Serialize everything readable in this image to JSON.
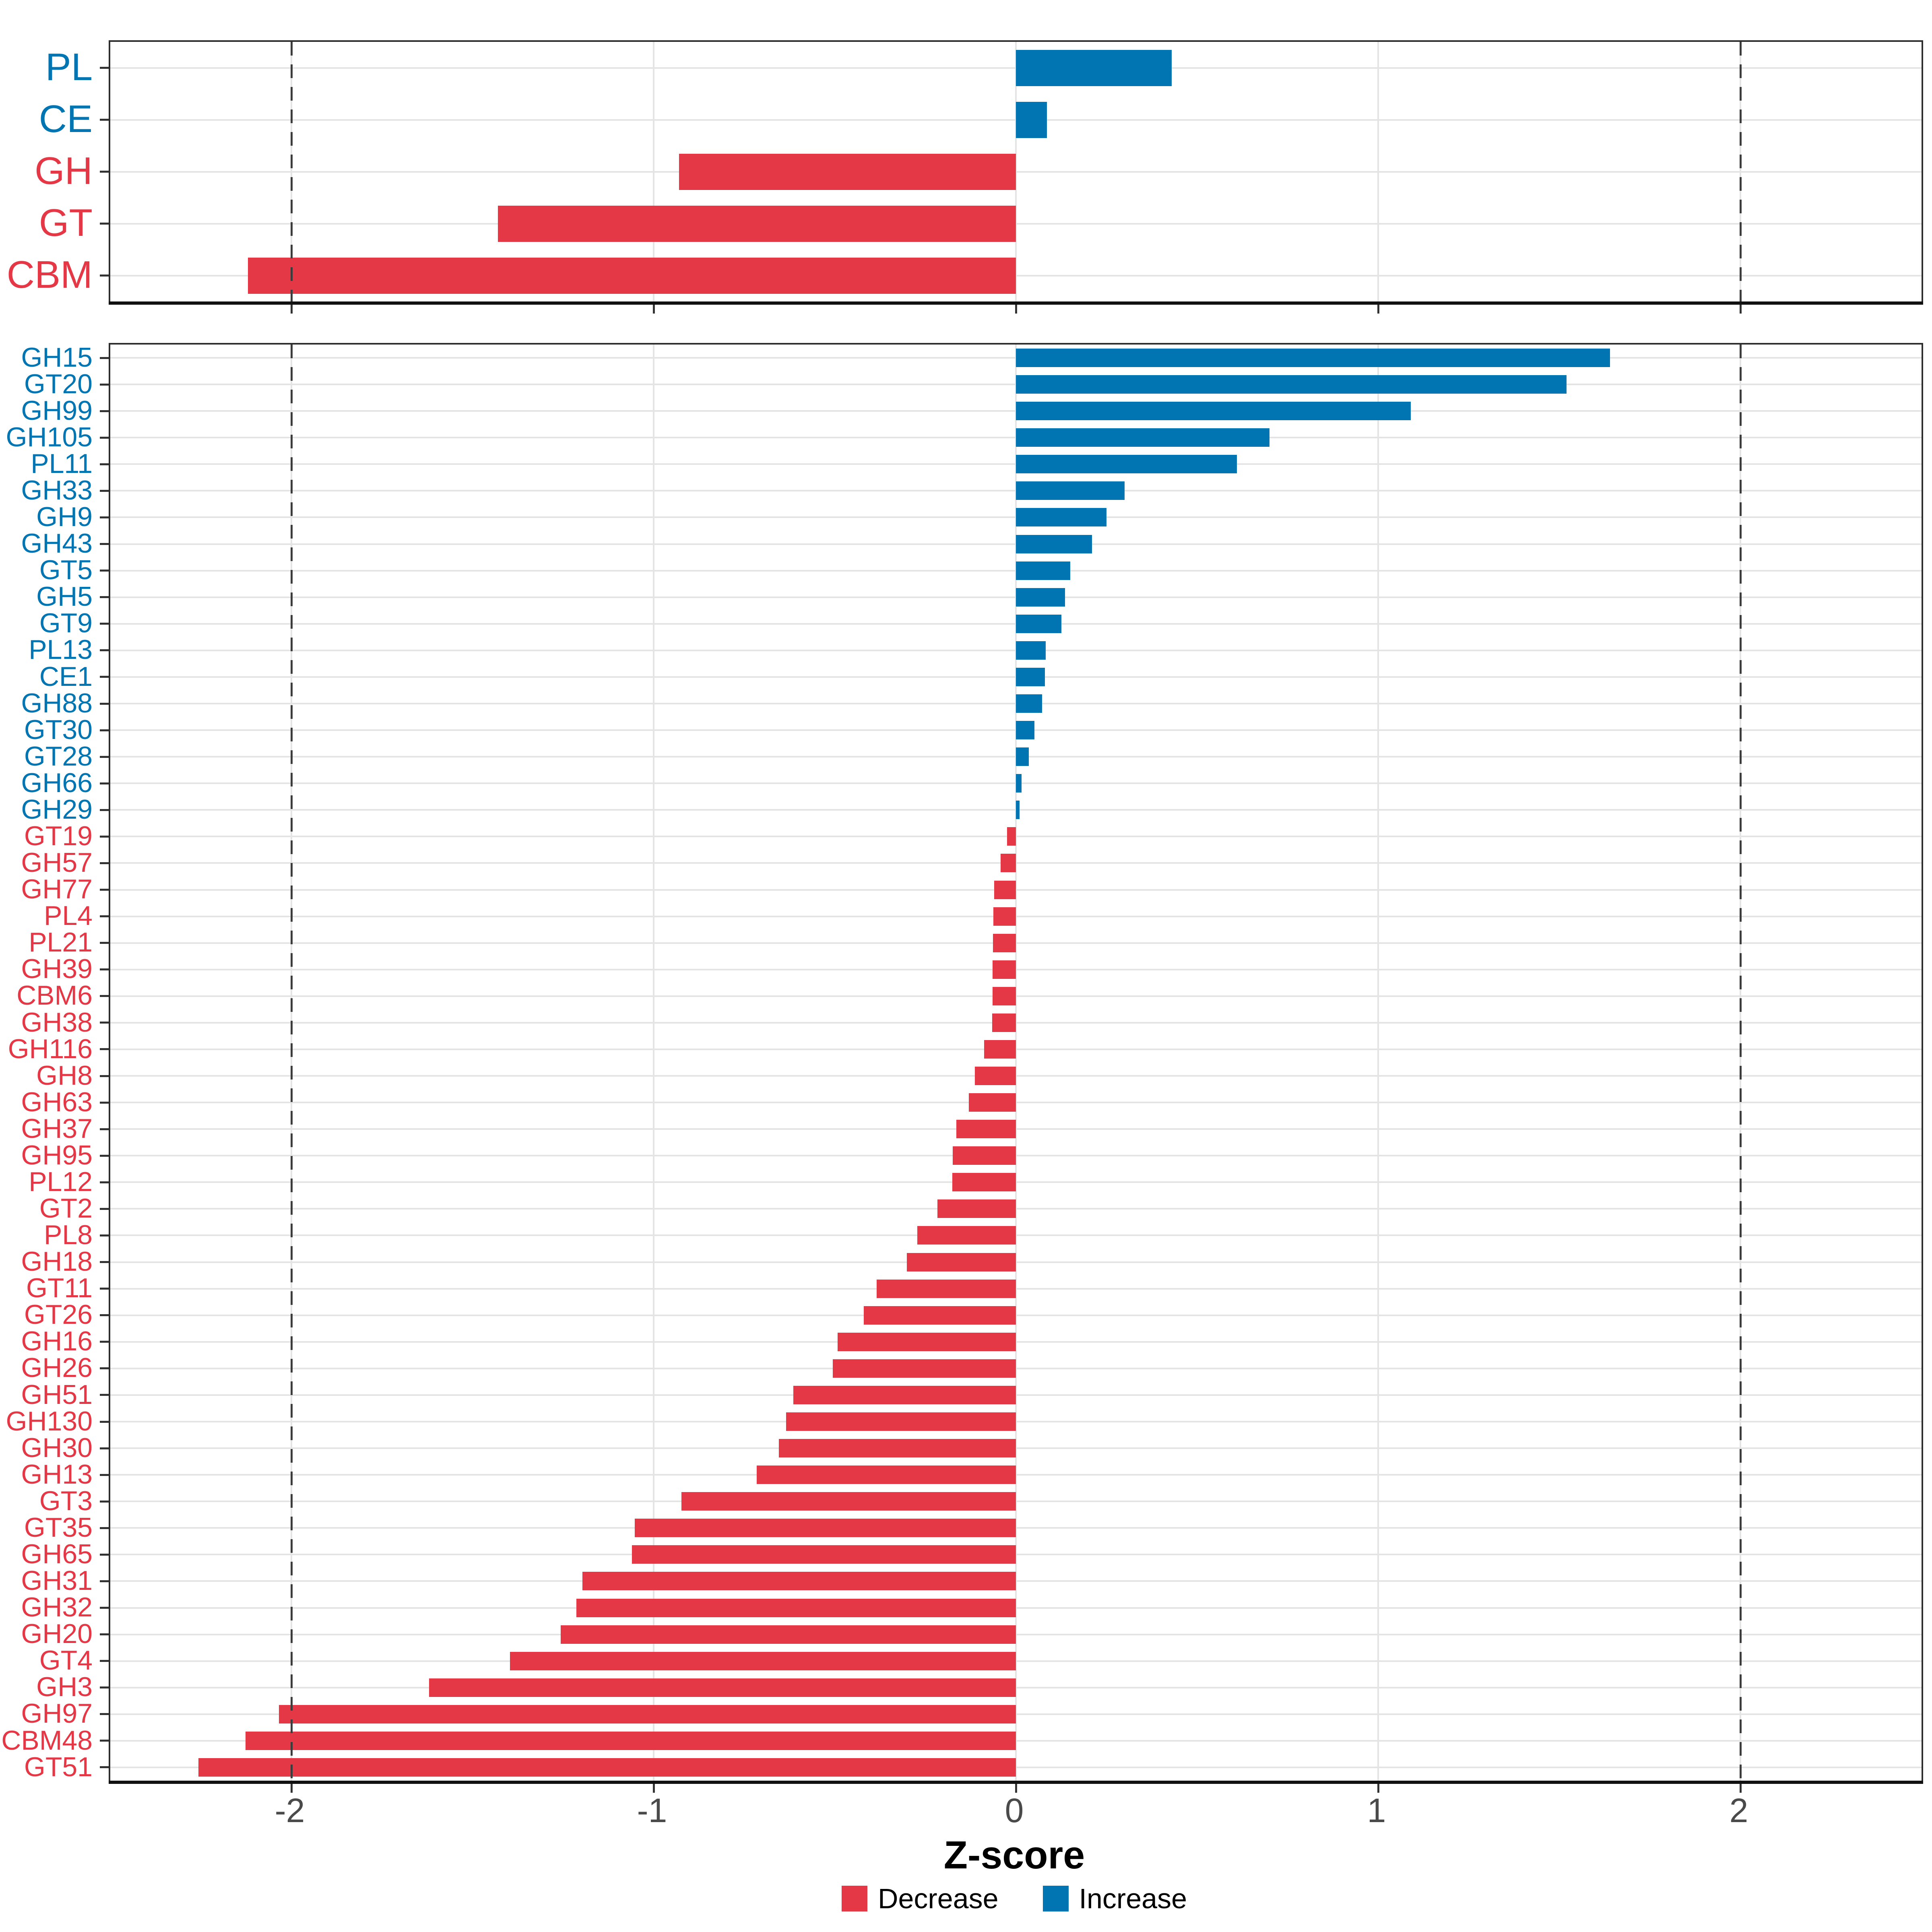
{
  "chart_data": {
    "type": "bar",
    "orientation": "horizontal-diverging",
    "title": "",
    "xlabel": "Z-score",
    "xlim": [
      -2.5,
      2.5
    ],
    "x_tick_values": [
      -2,
      -1,
      0,
      1,
      2
    ],
    "x_tick_labels": [
      "-2",
      "-1",
      "0",
      "1",
      "2"
    ],
    "dashed_guides": [
      -2,
      2
    ],
    "grid": "on",
    "legend_position": "bottom",
    "legend": [
      {
        "label": "Decrease",
        "key": "decrease"
      },
      {
        "label": "Increase",
        "key": "increase"
      }
    ],
    "colors": {
      "decrease": "#E43846",
      "increase": "#0075B2",
      "grid": "#E4E4E4",
      "dashed_guide": "#3D3D3D",
      "axis_text": "#4A4A4A",
      "tick": "#333333",
      "panel_border": "#2D2D2D",
      "axis_line": "#111111"
    },
    "panels": [
      {
        "id": "class-level",
        "categories": [
          "PL",
          "CE",
          "GH",
          "GT",
          "CBM"
        ],
        "values": [
          0.43,
          0.085,
          -0.93,
          -1.43,
          -2.12
        ]
      },
      {
        "id": "family-level",
        "categories": [
          "GH15",
          "GT20",
          "GH99",
          "GH105",
          "PL11",
          "GH33",
          "GH9",
          "GH43",
          "GT5",
          "GH5",
          "GT9",
          "PL13",
          "CE1",
          "GH88",
          "GT30",
          "GT28",
          "GH66",
          "GH29",
          "GT19",
          "GH57",
          "GH77",
          "PL4",
          "PL21",
          "GH39",
          "CBM6",
          "GH38",
          "GH116",
          "GH8",
          "GH63",
          "GH37",
          "GH95",
          "PL12",
          "GT2",
          "PL8",
          "GH18",
          "GT11",
          "GT26",
          "GH16",
          "GH26",
          "GH51",
          "GH130",
          "GH30",
          "GH13",
          "GT3",
          "GT35",
          "GH65",
          "GH31",
          "GH32",
          "GH20",
          "GT4",
          "GH3",
          "GH97",
          "CBM48",
          "GT51"
        ],
        "values": [
          1.64,
          1.52,
          1.09,
          0.7,
          0.61,
          0.3,
          0.25,
          0.21,
          0.15,
          0.135,
          0.125,
          0.082,
          0.08,
          0.072,
          0.051,
          0.036,
          0.015,
          0.01,
          -0.025,
          -0.042,
          -0.06,
          -0.062,
          -0.063,
          -0.064,
          -0.065,
          -0.066,
          -0.088,
          -0.113,
          -0.13,
          -0.165,
          -0.174,
          -0.176,
          -0.217,
          -0.272,
          -0.301,
          -0.385,
          -0.42,
          -0.492,
          -0.506,
          -0.614,
          -0.635,
          -0.654,
          -0.716,
          -0.923,
          -1.052,
          -1.06,
          -1.197,
          -1.213,
          -1.257,
          -1.397,
          -1.62,
          -2.035,
          -2.127,
          -2.257
        ]
      }
    ]
  }
}
